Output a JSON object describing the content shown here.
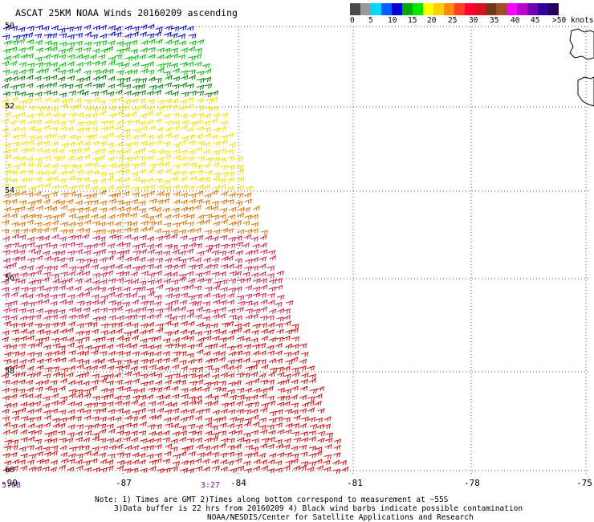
{
  "title": "ASCAT 25KM NOAA Winds 20160209 ascending",
  "color_scale": {
    "labels": [
      "0",
      "5",
      "10",
      "15",
      "20",
      "25",
      "30",
      "35",
      "40",
      "45",
      ">50 knots"
    ],
    "colors": [
      "#4a4a4a",
      "#9a9a9a",
      "#00d8ff",
      "#0060ff",
      "#0000d8",
      "#00a800",
      "#00e800",
      "#ffff00",
      "#ffd000",
      "#ff8c00",
      "#ff4020",
      "#ff0030",
      "#d81020",
      "#703818",
      "#a05020",
      "#ff00ff",
      "#c000d0",
      "#7000b0",
      "#3000a0",
      "#200060"
    ]
  },
  "lat_labels": [
    "50",
    "52",
    "54",
    "56",
    "58",
    "60"
  ],
  "lon_labels": [
    "-90",
    "-87",
    "-84",
    "-81",
    "-78",
    "-75"
  ],
  "time_labels": [
    "5:08",
    "3:27"
  ],
  "notes": {
    "line1": "Note: 1) Times are GMT 2)Times along bottom correspond to measurement at ~55S",
    "line2": "3)Data buffer is 22 hrs from 20160209 4) Black wind barbs indicate possible contamination",
    "line3": "NOAA/NESDIS/Center for Satellite Applications and Research"
  },
  "wind_zones": [
    {
      "lat_from": 50.0,
      "lat_to": 50.7,
      "speed": "10-15",
      "color": "#0000d0"
    },
    {
      "lat_from": 50.4,
      "lat_to": 52.3,
      "speed": "15-20",
      "color": "#00c000"
    },
    {
      "lat_from": 51.2,
      "lat_to": 52.8,
      "speed": "15-20",
      "color": "#008000"
    },
    {
      "lat_from": 51.8,
      "lat_to": 54.2,
      "speed": "20-25",
      "color": "#f0e000"
    },
    {
      "lat_from": 54.0,
      "lat_to": 55.5,
      "speed": "25-30",
      "color": "#e07000"
    },
    {
      "lat_from": 55.0,
      "lat_to": 57.5,
      "speed": "30-35",
      "color": "#d02050"
    },
    {
      "lat_from": 57.0,
      "lat_to": 60.3,
      "speed": "30-35",
      "color": "#d01010"
    }
  ]
}
